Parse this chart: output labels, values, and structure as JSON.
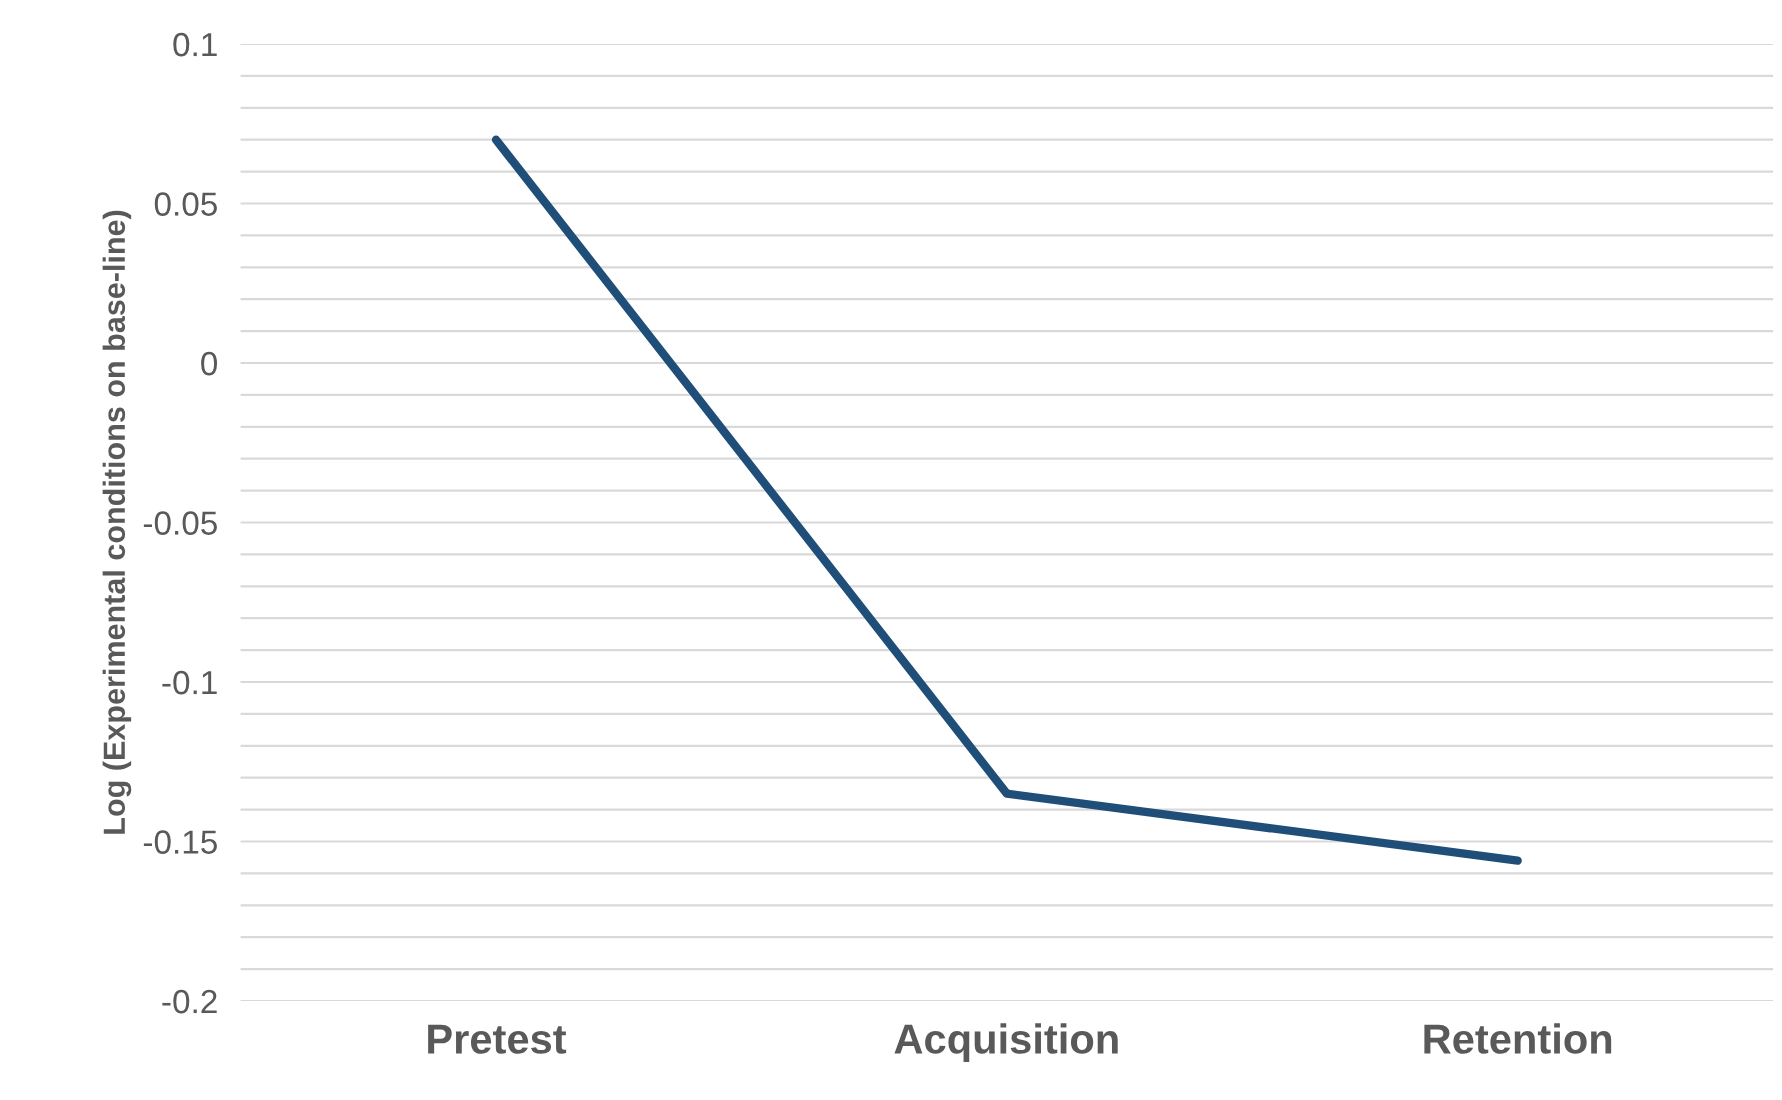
{
  "chart_data": {
    "type": "line",
    "ylabel": "Log (Experimental conditions on base-line)",
    "categories": [
      "Pretest",
      "Acquisition",
      "Retention"
    ],
    "series": [
      {
        "color": "#1f4e79",
        "values": [
          0.07,
          -0.135,
          -0.156
        ]
      }
    ],
    "ylim": [
      -0.2,
      0.1
    ],
    "yticks": [
      -0.2,
      {
        "value": -0.19,
        "label": null
      },
      {
        "value": -0.18,
        "label": null
      },
      {
        "value": -0.17,
        "label": null
      },
      {
        "value": -0.16,
        "label": null
      },
      -0.15,
      {
        "value": -0.14,
        "label": null
      },
      {
        "value": -0.13,
        "label": null
      },
      {
        "value": -0.12,
        "label": null
      },
      {
        "value": -0.11,
        "label": null
      },
      -0.1,
      {
        "value": -0.09,
        "label": null
      },
      {
        "value": -0.08,
        "label": null
      },
      {
        "value": -0.07,
        "label": null
      },
      {
        "value": -0.06,
        "label": null
      },
      -0.05,
      {
        "value": -0.04,
        "label": null
      },
      {
        "value": -0.03,
        "label": null
      },
      {
        "value": -0.02,
        "label": null
      },
      {
        "value": -0.01,
        "label": null
      },
      0,
      {
        "value": 0.01,
        "label": null
      },
      {
        "value": 0.02,
        "label": null
      },
      {
        "value": 0.03,
        "label": null
      },
      {
        "value": 0.04,
        "label": null
      },
      0.05,
      {
        "value": 0.06,
        "label": null
      },
      {
        "value": 0.07,
        "label": null
      },
      {
        "value": 0.08,
        "label": null
      },
      {
        "value": 0.09,
        "label": null
      },
      0.1
    ],
    "grid": "y",
    "line_style": "solid"
  }
}
